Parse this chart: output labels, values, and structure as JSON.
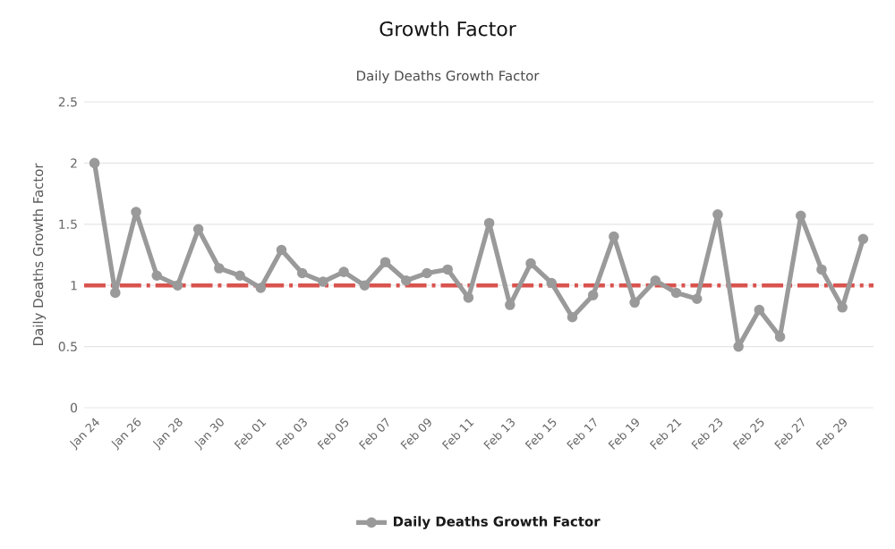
{
  "chart_data": {
    "type": "line",
    "title": "Growth Factor",
    "subtitle": "Daily Deaths Growth Factor",
    "ylabel": "Daily Deaths Growth Factor",
    "categories": [
      "Jan 24",
      null,
      "Jan 26",
      null,
      "Jan 28",
      null,
      "Jan 30",
      null,
      "Feb 01",
      null,
      "Feb 03",
      null,
      "Feb 05",
      null,
      "Feb 07",
      null,
      "Feb 09",
      null,
      "Feb 11",
      null,
      "Feb 13",
      null,
      "Feb 15",
      null,
      "Feb 17",
      null,
      "Feb 19",
      null,
      "Feb 21",
      null,
      "Feb 23",
      null,
      "Feb 25",
      null,
      "Feb 27",
      null,
      "Feb 29",
      null
    ],
    "series": [
      {
        "name": "Daily Deaths Growth Factor",
        "color": "#9a9a9a",
        "values": [
          2.0,
          0.94,
          1.6,
          1.08,
          1.0,
          1.46,
          1.14,
          1.08,
          0.98,
          1.29,
          1.1,
          1.03,
          1.11,
          1.0,
          1.19,
          1.04,
          1.1,
          1.13,
          0.9,
          1.51,
          0.84,
          1.18,
          1.02,
          0.74,
          0.92,
          1.4,
          0.86,
          1.04,
          0.94,
          0.89,
          1.58,
          0.5,
          0.8,
          0.58,
          1.57,
          1.13,
          0.82,
          1.38
        ]
      }
    ],
    "ylim": [
      0,
      2.5
    ],
    "yticks": [
      0,
      0.5,
      1,
      1.5,
      2,
      2.5
    ],
    "grid": "y",
    "legend": "bottom",
    "marker": "circle",
    "line_style": "solid",
    "ref_lines": [
      {
        "axis": "y",
        "value": 1,
        "color": "#d9534f",
        "line_style": "dashdot"
      }
    ]
  }
}
